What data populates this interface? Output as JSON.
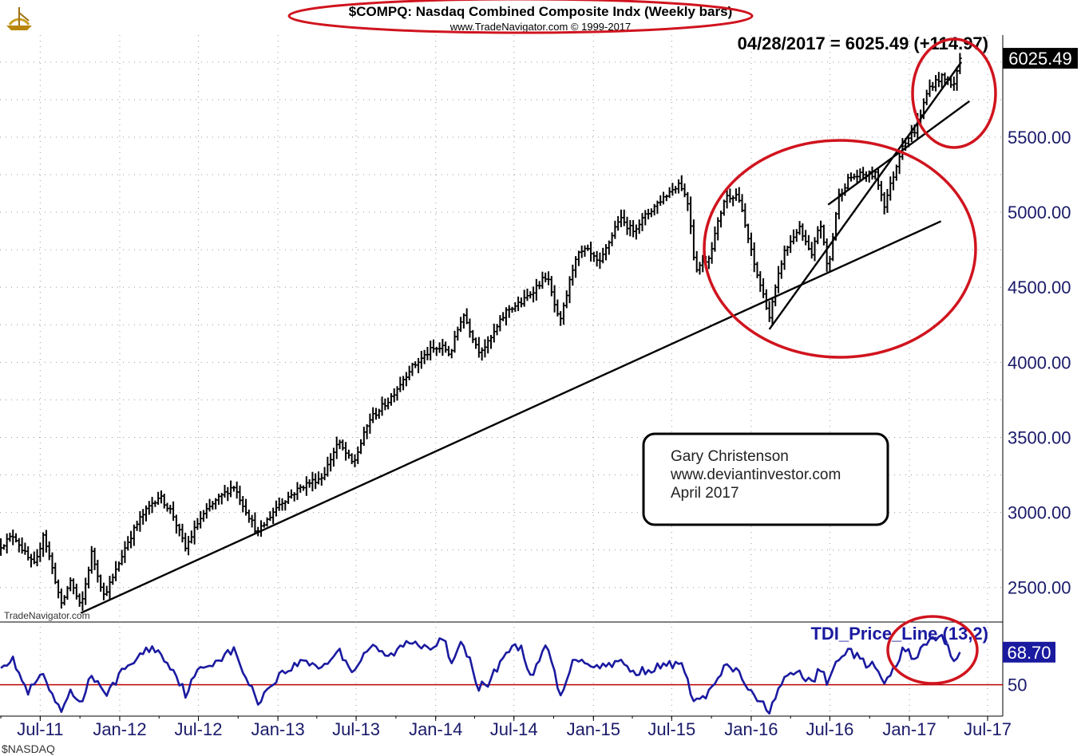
{
  "header": {
    "title": "$COMPQ:  Nasdaq Combined Composite Indx  (Weekly bars)",
    "subtitle": "www.TradeNavigator.com © 1999-2017",
    "readout": "04/28/2017 = 6025.49 (+114.97)",
    "watermark": "TradeNavigator.com",
    "footer_symbol": "$NASDAQ"
  },
  "annotation": {
    "line1": "Gary Christenson",
    "line2": "www.deviantinvestor.com",
    "line3": "April 2017"
  },
  "colors": {
    "price_bars": "#000000",
    "indicator_line": "#1a1aa0",
    "reference_line": "#c00000",
    "circle": "#d0141e",
    "last_price_bg": "#000000",
    "last_indicator_bg": "#1a1aa0",
    "axis_text": "#1a1a6a"
  },
  "chart_data": [
    {
      "type": "ohlc",
      "title": "$COMPQ:  Nasdaq Combined Composite Indx  (Weekly bars)",
      "x_tick_labels": [
        "Jul-11",
        "Jan-12",
        "Jul-12",
        "Jan-13",
        "Jul-13",
        "Jan-14",
        "Jul-14",
        "Jan-15",
        "Jul-15",
        "Jan-16",
        "Jul-16",
        "Jan-17",
        "Jul-17"
      ],
      "y_tick_labels": [
        "2500.00",
        "3000.00",
        "3500.00",
        "4000.00",
        "4500.00",
        "5000.00",
        "5500.00"
      ],
      "ylim": [
        2270,
        6180
      ],
      "xlim": [
        "2011-03-30",
        "2017-08-05"
      ],
      "grid": true,
      "last_value_label": "6025.49",
      "anchors": [
        {
          "date": "2011-04-01",
          "close": 2780
        },
        {
          "date": "2011-05-01",
          "close": 2850
        },
        {
          "date": "2011-06-01",
          "close": 2700
        },
        {
          "date": "2011-06-20",
          "close": 2640
        },
        {
          "date": "2011-07-08",
          "close": 2860
        },
        {
          "date": "2011-08-05",
          "close": 2550
        },
        {
          "date": "2011-08-19",
          "close": 2380
        },
        {
          "date": "2011-09-09",
          "close": 2550
        },
        {
          "date": "2011-10-03",
          "close": 2360
        },
        {
          "date": "2011-10-28",
          "close": 2730
        },
        {
          "date": "2011-11-25",
          "close": 2450
        },
        {
          "date": "2011-12-16",
          "close": 2560
        },
        {
          "date": "2012-01-15",
          "close": 2780
        },
        {
          "date": "2012-02-15",
          "close": 2950
        },
        {
          "date": "2012-03-15",
          "close": 3060
        },
        {
          "date": "2012-04-01",
          "close": 3110
        },
        {
          "date": "2012-05-01",
          "close": 3000
        },
        {
          "date": "2012-06-01",
          "close": 2760
        },
        {
          "date": "2012-07-01",
          "close": 2940
        },
        {
          "date": "2012-08-01",
          "close": 3050
        },
        {
          "date": "2012-09-20",
          "close": 3180
        },
        {
          "date": "2012-11-15",
          "close": 2860
        },
        {
          "date": "2013-01-01",
          "close": 3050
        },
        {
          "date": "2013-03-01",
          "close": 3180
        },
        {
          "date": "2013-04-15",
          "close": 3240
        },
        {
          "date": "2013-05-20",
          "close": 3470
        },
        {
          "date": "2013-06-24",
          "close": 3320
        },
        {
          "date": "2013-08-01",
          "close": 3620
        },
        {
          "date": "2013-09-15",
          "close": 3750
        },
        {
          "date": "2013-11-01",
          "close": 3950
        },
        {
          "date": "2013-12-20",
          "close": 4080
        },
        {
          "date": "2014-01-20",
          "close": 4100
        },
        {
          "date": "2014-02-03",
          "close": 4050
        },
        {
          "date": "2014-03-05",
          "close": 4330
        },
        {
          "date": "2014-04-10",
          "close": 4080
        },
        {
          "date": "2014-05-01",
          "close": 4120
        },
        {
          "date": "2014-06-15",
          "close": 4350
        },
        {
          "date": "2014-07-20",
          "close": 4400
        },
        {
          "date": "2014-09-15",
          "close": 4580
        },
        {
          "date": "2014-10-15",
          "close": 4250
        },
        {
          "date": "2014-11-20",
          "close": 4700
        },
        {
          "date": "2014-12-15",
          "close": 4750
        },
        {
          "date": "2015-01-15",
          "close": 4650
        },
        {
          "date": "2015-03-01",
          "close": 4960
        },
        {
          "date": "2015-04-01",
          "close": 4880
        },
        {
          "date": "2015-06-01",
          "close": 5070
        },
        {
          "date": "2015-07-20",
          "close": 5200
        },
        {
          "date": "2015-08-10",
          "close": 5040
        },
        {
          "date": "2015-08-24",
          "close": 4620
        },
        {
          "date": "2015-09-25",
          "close": 4700
        },
        {
          "date": "2015-11-01",
          "close": 5100
        },
        {
          "date": "2015-12-01",
          "close": 5120
        },
        {
          "date": "2016-01-08",
          "close": 4650
        },
        {
          "date": "2016-02-05",
          "close": 4380
        },
        {
          "date": "2016-02-12",
          "close": 4300
        },
        {
          "date": "2016-03-15",
          "close": 4720
        },
        {
          "date": "2016-04-20",
          "close": 4900
        },
        {
          "date": "2016-05-20",
          "close": 4700
        },
        {
          "date": "2016-06-08",
          "close": 4950
        },
        {
          "date": "2016-06-27",
          "close": 4600
        },
        {
          "date": "2016-07-20",
          "close": 5100
        },
        {
          "date": "2016-08-15",
          "close": 5230
        },
        {
          "date": "2016-09-15",
          "close": 5250
        },
        {
          "date": "2016-10-15",
          "close": 5250
        },
        {
          "date": "2016-11-04",
          "close": 5050
        },
        {
          "date": "2016-12-01",
          "close": 5300
        },
        {
          "date": "2016-12-15",
          "close": 5450
        },
        {
          "date": "2017-01-15",
          "close": 5550
        },
        {
          "date": "2017-02-15",
          "close": 5830
        },
        {
          "date": "2017-03-15",
          "close": 5900
        },
        {
          "date": "2017-04-14",
          "close": 5850
        },
        {
          "date": "2017-04-28",
          "close": 6025.49
        }
      ],
      "trendlines": [
        {
          "start": {
            "date": "2011-10-03",
            "value": 2330
          },
          "end": {
            "date": "2017-03-15",
            "value": 4940
          }
        },
        {
          "start": {
            "date": "2016-02-12",
            "value": 4220
          },
          "end": {
            "date": "2017-05-01",
            "value": 6000
          }
        },
        {
          "start": {
            "date": "2016-06-27",
            "value": 5050
          },
          "end": {
            "date": "2017-05-20",
            "value": 5740
          }
        }
      ]
    },
    {
      "type": "line",
      "title": "TDI_Price_Line (13,2)",
      "last_value_label": "68.70",
      "y_tick_labels": [
        "50"
      ],
      "reference_value": 50,
      "ylim": [
        32,
        86
      ],
      "anchors": [
        {
          "date": "2011-04-01",
          "value": 62
        },
        {
          "date": "2011-05-01",
          "value": 64
        },
        {
          "date": "2011-06-01",
          "value": 45
        },
        {
          "date": "2011-07-08",
          "value": 56
        },
        {
          "date": "2011-08-05",
          "value": 38
        },
        {
          "date": "2011-08-19",
          "value": 35
        },
        {
          "date": "2011-09-09",
          "value": 45
        },
        {
          "date": "2011-10-03",
          "value": 40
        },
        {
          "date": "2011-10-28",
          "value": 56
        },
        {
          "date": "2011-11-25",
          "value": 44
        },
        {
          "date": "2011-12-16",
          "value": 50
        },
        {
          "date": "2012-01-15",
          "value": 60
        },
        {
          "date": "2012-03-15",
          "value": 72
        },
        {
          "date": "2012-04-10",
          "value": 66
        },
        {
          "date": "2012-05-01",
          "value": 60
        },
        {
          "date": "2012-06-01",
          "value": 45
        },
        {
          "date": "2012-07-01",
          "value": 58
        },
        {
          "date": "2012-09-20",
          "value": 70
        },
        {
          "date": "2012-11-15",
          "value": 40
        },
        {
          "date": "2013-01-01",
          "value": 55
        },
        {
          "date": "2013-03-01",
          "value": 64
        },
        {
          "date": "2013-04-15",
          "value": 60
        },
        {
          "date": "2013-05-20",
          "value": 70
        },
        {
          "date": "2013-06-24",
          "value": 58
        },
        {
          "date": "2013-08-01",
          "value": 72
        },
        {
          "date": "2013-09-15",
          "value": 66
        },
        {
          "date": "2013-11-01",
          "value": 75
        },
        {
          "date": "2013-12-20",
          "value": 72
        },
        {
          "date": "2014-01-20",
          "value": 78
        },
        {
          "date": "2014-02-03",
          "value": 60
        },
        {
          "date": "2014-03-05",
          "value": 75
        },
        {
          "date": "2014-04-10",
          "value": 49
        },
        {
          "date": "2014-05-01",
          "value": 50
        },
        {
          "date": "2014-06-15",
          "value": 70
        },
        {
          "date": "2014-07-20",
          "value": 72
        },
        {
          "date": "2014-08-10",
          "value": 52
        },
        {
          "date": "2014-09-15",
          "value": 74
        },
        {
          "date": "2014-10-15",
          "value": 44
        },
        {
          "date": "2014-11-20",
          "value": 66
        },
        {
          "date": "2015-01-15",
          "value": 60
        },
        {
          "date": "2015-03-01",
          "value": 64
        },
        {
          "date": "2015-04-01",
          "value": 57
        },
        {
          "date": "2015-06-01",
          "value": 60
        },
        {
          "date": "2015-07-20",
          "value": 63
        },
        {
          "date": "2015-08-24",
          "value": 40
        },
        {
          "date": "2015-09-25",
          "value": 45
        },
        {
          "date": "2015-11-01",
          "value": 60
        },
        {
          "date": "2015-12-01",
          "value": 58
        },
        {
          "date": "2016-01-08",
          "value": 42
        },
        {
          "date": "2016-02-12",
          "value": 36
        },
        {
          "date": "2016-03-15",
          "value": 52
        },
        {
          "date": "2016-04-20",
          "value": 58
        },
        {
          "date": "2016-05-20",
          "value": 50
        },
        {
          "date": "2016-06-08",
          "value": 60
        },
        {
          "date": "2016-06-27",
          "value": 50
        },
        {
          "date": "2016-07-20",
          "value": 66
        },
        {
          "date": "2016-08-15",
          "value": 70
        },
        {
          "date": "2016-09-15",
          "value": 63
        },
        {
          "date": "2016-10-15",
          "value": 60
        },
        {
          "date": "2016-11-04",
          "value": 50
        },
        {
          "date": "2016-12-01",
          "value": 60
        },
        {
          "date": "2016-12-15",
          "value": 70
        },
        {
          "date": "2017-01-15",
          "value": 66
        },
        {
          "date": "2017-02-15",
          "value": 75
        },
        {
          "date": "2017-03-15",
          "value": 78
        },
        {
          "date": "2017-04-14",
          "value": 65
        },
        {
          "date": "2017-04-28",
          "value": 68.7
        }
      ]
    }
  ]
}
